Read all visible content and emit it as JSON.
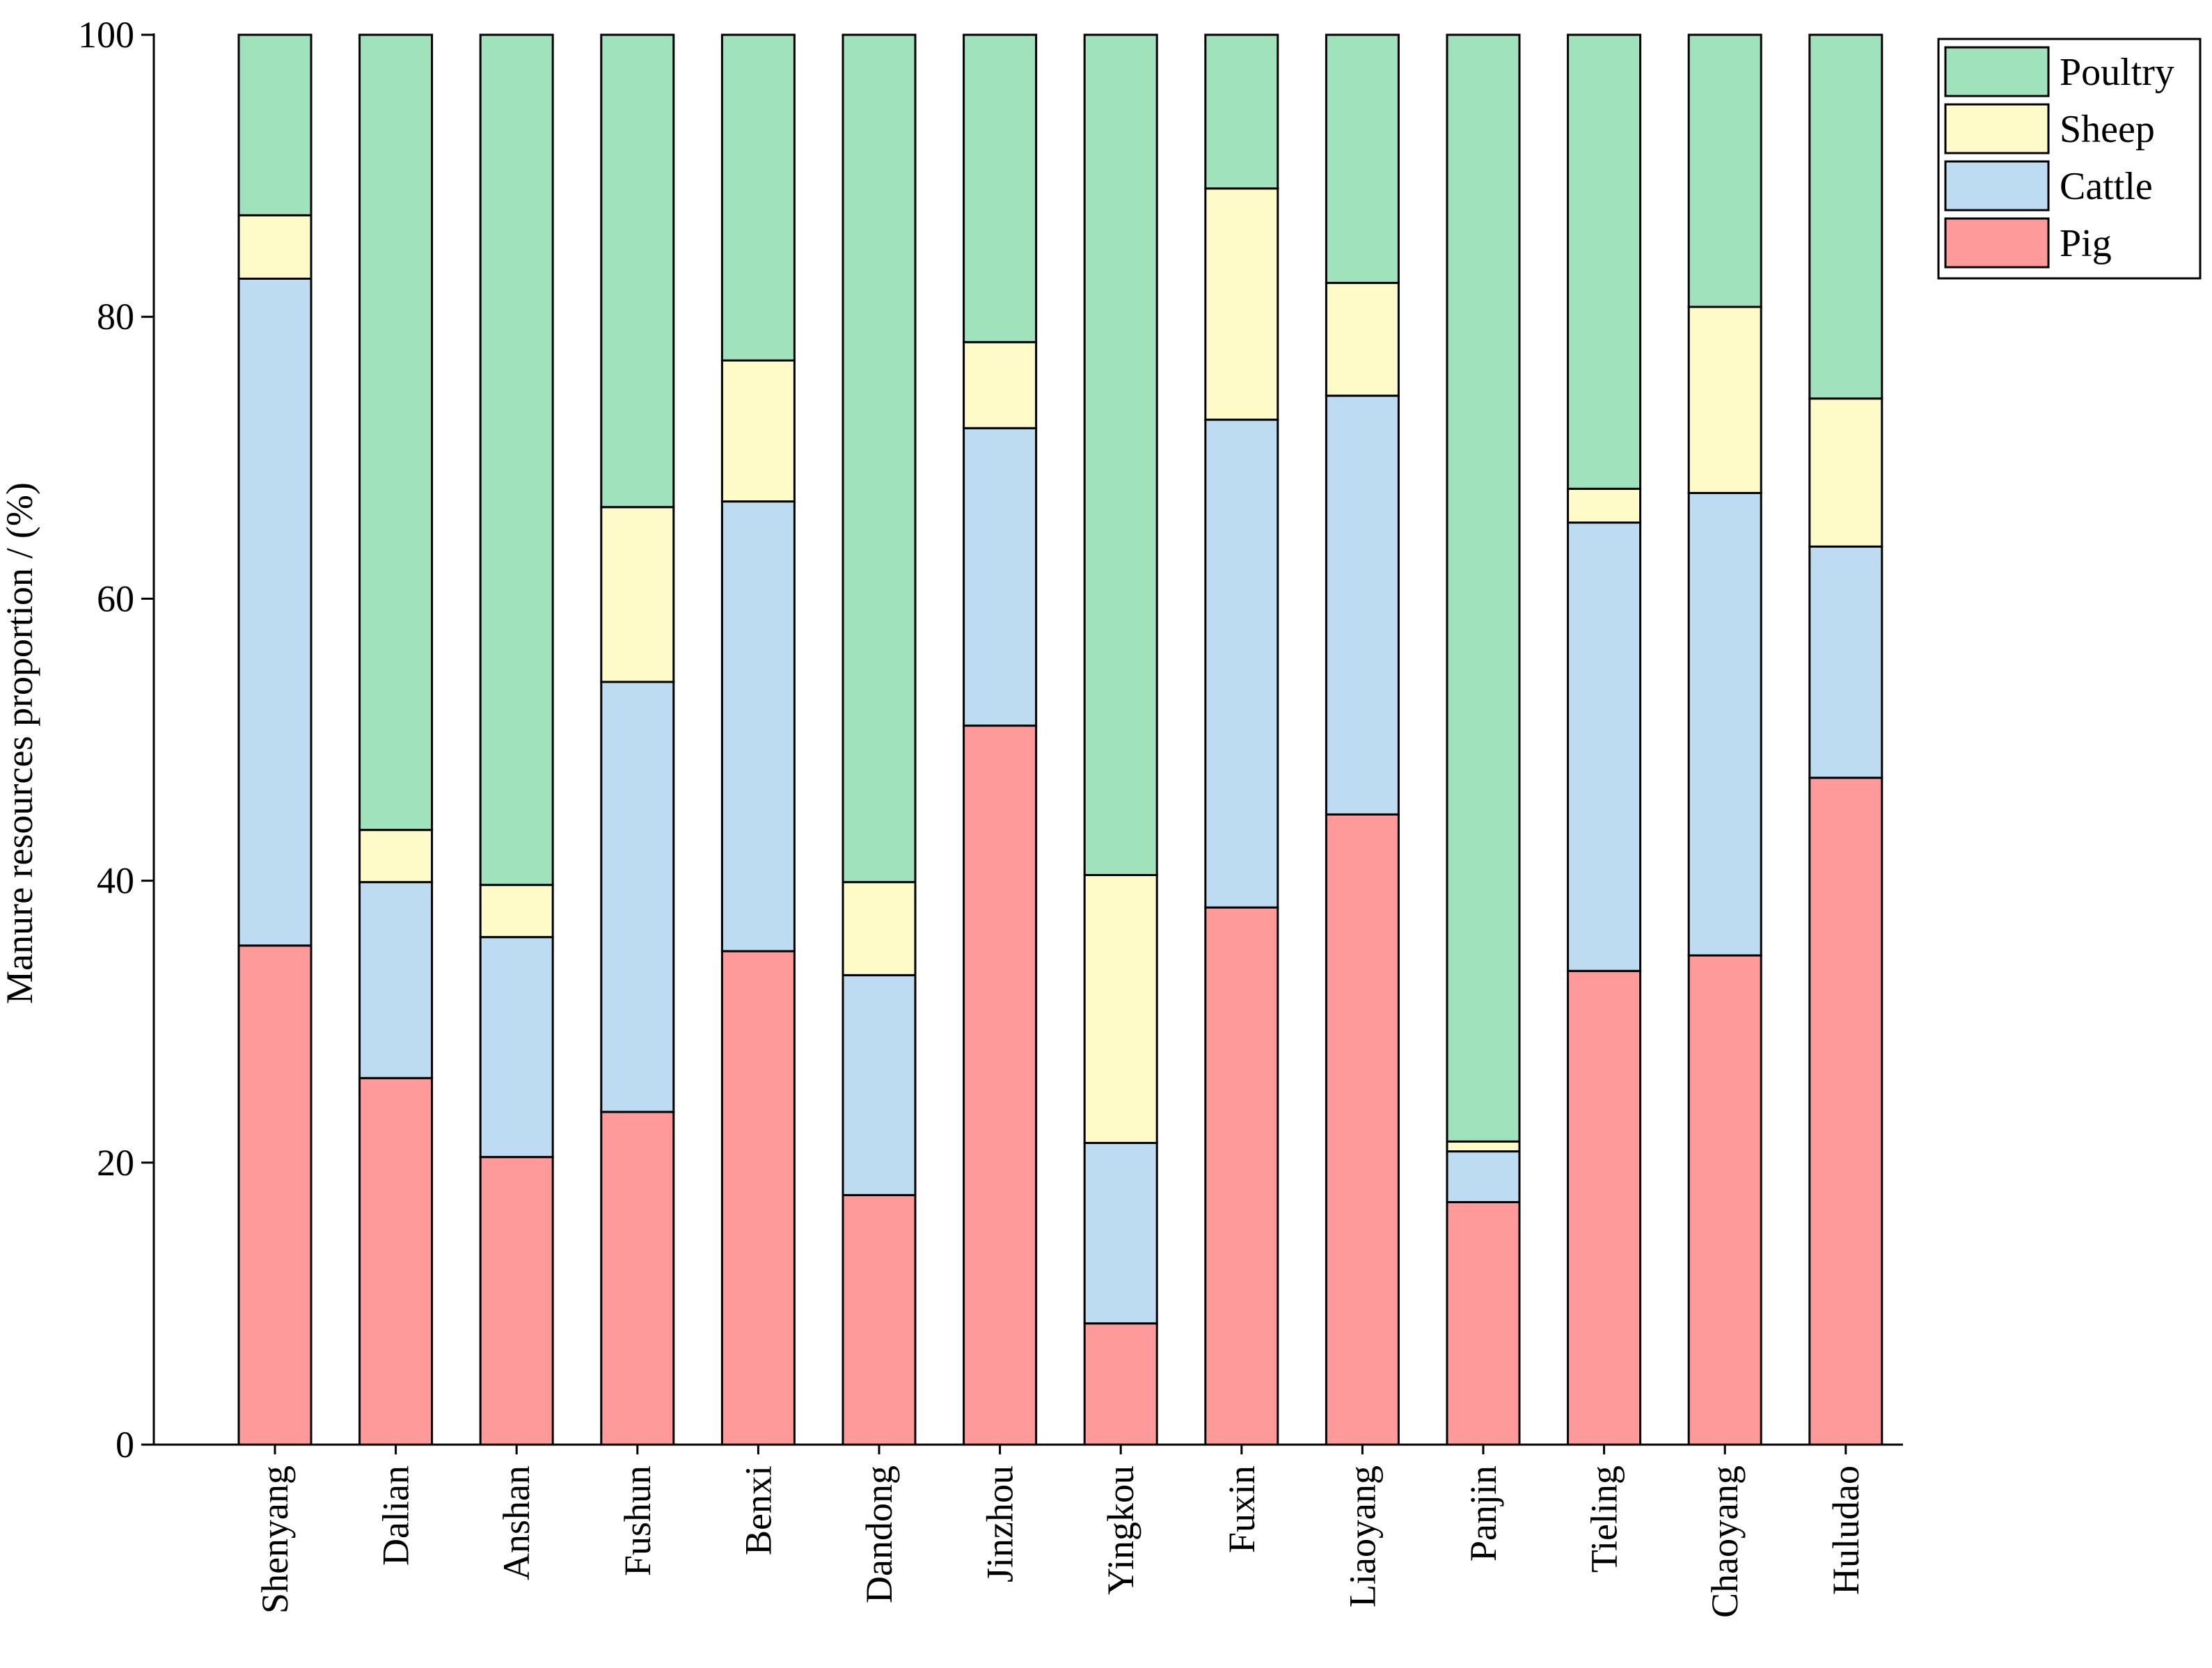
{
  "chart_data": {
    "type": "bar",
    "stacked": true,
    "title": "",
    "xlabel": "",
    "ylabel": "Manure resources proportion / (%)",
    "ylim": [
      0,
      100
    ],
    "yticks": [
      0,
      20,
      40,
      60,
      80,
      100
    ],
    "grid": false,
    "legend_position": "top-right",
    "categories": [
      "Shenyang",
      "Dalian",
      "Anshan",
      "Fushun",
      "Benxi",
      "Dandong",
      "Jinzhou",
      "Yingkou",
      "Fuxin",
      "Liaoyang",
      "Panjin",
      "Tieling",
      "Chaoyang",
      "Huludao"
    ],
    "series": [
      {
        "name": "Pig",
        "color": "#fe9a9a",
        "values": [
          35.4,
          26.0,
          20.4,
          23.6,
          35.0,
          17.7,
          51.0,
          8.6,
          38.1,
          44.7,
          17.2,
          33.6,
          34.7,
          47.3
        ]
      },
      {
        "name": "Cattle",
        "color": "#bedcf1",
        "values": [
          47.3,
          13.9,
          15.6,
          30.5,
          31.9,
          15.6,
          21.1,
          12.8,
          34.6,
          29.7,
          3.6,
          31.8,
          32.8,
          16.4
        ]
      },
      {
        "name": "Sheep",
        "color": "#fefbc8",
        "values": [
          4.5,
          3.7,
          3.7,
          12.4,
          10.0,
          6.6,
          6.1,
          19.0,
          16.4,
          8.0,
          0.7,
          2.4,
          13.2,
          10.5
        ]
      },
      {
        "name": "Poultry",
        "color": "#9fe2bb",
        "values": [
          12.8,
          56.4,
          60.3,
          33.5,
          23.1,
          60.1,
          21.8,
          59.6,
          10.9,
          17.6,
          78.5,
          32.2,
          19.3,
          25.8
        ]
      }
    ],
    "legend_order": [
      "Poultry",
      "Sheep",
      "Cattle",
      "Pig"
    ]
  }
}
